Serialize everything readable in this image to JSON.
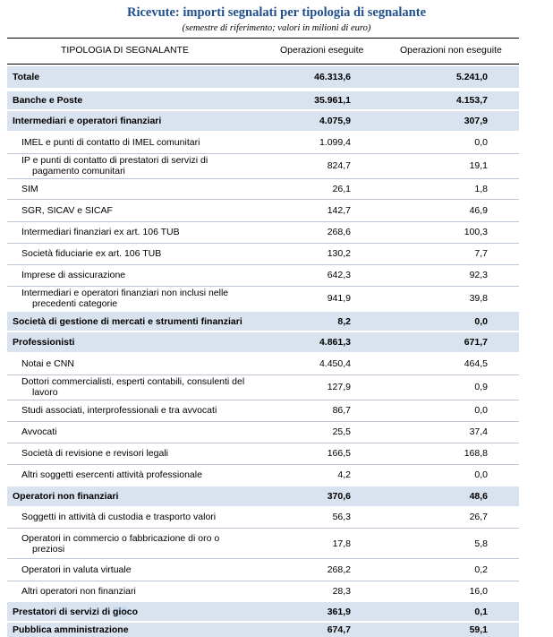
{
  "title": "Ricevute: importi segnalati per tipologia di segnalante",
  "subtitle": "(semestre di riferimento; valori in milioni di euro)",
  "columns": {
    "type": "TIPOLOGIA DI SEGNALANTE",
    "executed": "Operazioni eseguite",
    "not_executed": "Operazioni non eseguite"
  },
  "rows": [
    {
      "label": "Totale",
      "v1": "46.313,6",
      "v2": "5.241,0",
      "bold": true
    },
    {
      "label": "Banche e Poste",
      "v1": "35.961,1",
      "v2": "4.153,7",
      "bold": true
    },
    {
      "label": "Intermediari e operatori finanziari",
      "v1": "4.075,9",
      "v2": "307,9",
      "bold": true
    },
    {
      "label": "IMEL e punti di contatto di IMEL comunitari",
      "v1": "1.099,4",
      "v2": "0,0"
    },
    {
      "label": "IP e punti di contatto di prestatori di servizi di",
      "label2": "pagamento comunitari",
      "v1": "824,7",
      "v2": "19,1"
    },
    {
      "label": "SIM",
      "v1": "26,1",
      "v2": "1,8"
    },
    {
      "label": "SGR, SICAV e SICAF",
      "v1": "142,7",
      "v2": "46,9"
    },
    {
      "label": "Intermediari finanziari ex art. 106 TUB",
      "v1": "268,6",
      "v2": "100,3"
    },
    {
      "label": "Società fiduciarie ex art. 106 TUB",
      "v1": "130,2",
      "v2": "7,7"
    },
    {
      "label": "Imprese di assicurazione",
      "v1": "642,3",
      "v2": "92,3"
    },
    {
      "label": "Intermediari e operatori finanziari non inclusi nelle",
      "label2": "precedenti categorie",
      "v1": "941,9",
      "v2": "39,8"
    },
    {
      "label": "Società di gestione di mercati e strumenti finanziari",
      "v1": "8,2",
      "v2": "0,0",
      "bold": true
    },
    {
      "label": "Professionisti",
      "v1": "4.861,3",
      "v2": "671,7",
      "bold": true
    },
    {
      "label": "Notai e CNN",
      "v1": "4.450,4",
      "v2": "464,5"
    },
    {
      "label": "Dottori commercialisti, esperti contabili, consulenti del",
      "label2": "lavoro",
      "v1": "127,9",
      "v2": "0,9"
    },
    {
      "label": "Studi associati, interprofessionali e tra avvocati",
      "v1": "86,7",
      "v2": "0,0"
    },
    {
      "label": "Avvocati",
      "v1": "25,5",
      "v2": "37,4"
    },
    {
      "label": "Società di revisione e revisori legali",
      "v1": "166,5",
      "v2": "168,8"
    },
    {
      "label": "Altri soggetti esercenti attività professionale",
      "v1": "4,2",
      "v2": "0,0"
    },
    {
      "label": "Operatori non finanziari",
      "v1": "370,6",
      "v2": "48,6",
      "bold": true
    },
    {
      "label": "Soggetti in attività di custodia e trasporto valori",
      "v1": "56,3",
      "v2": "26,7"
    },
    {
      "label": "Operatori in commercio o fabbricazione di oro o",
      "label2": "preziosi",
      "v1": "17,8",
      "v2": "5,8"
    },
    {
      "label": "Operatori in valuta virtuale",
      "v1": "268,2",
      "v2": "0,2"
    },
    {
      "label": "Altri operatori non finanziari",
      "v1": "28,3",
      "v2": "16,0"
    },
    {
      "label": "Prestatori di servizi di gioco",
      "v1": "361,9",
      "v2": "0,1",
      "bold": true
    },
    {
      "label": "Pubblica amministrazione",
      "v1": "674,7",
      "v2": "59,1",
      "bold": true
    }
  ]
}
